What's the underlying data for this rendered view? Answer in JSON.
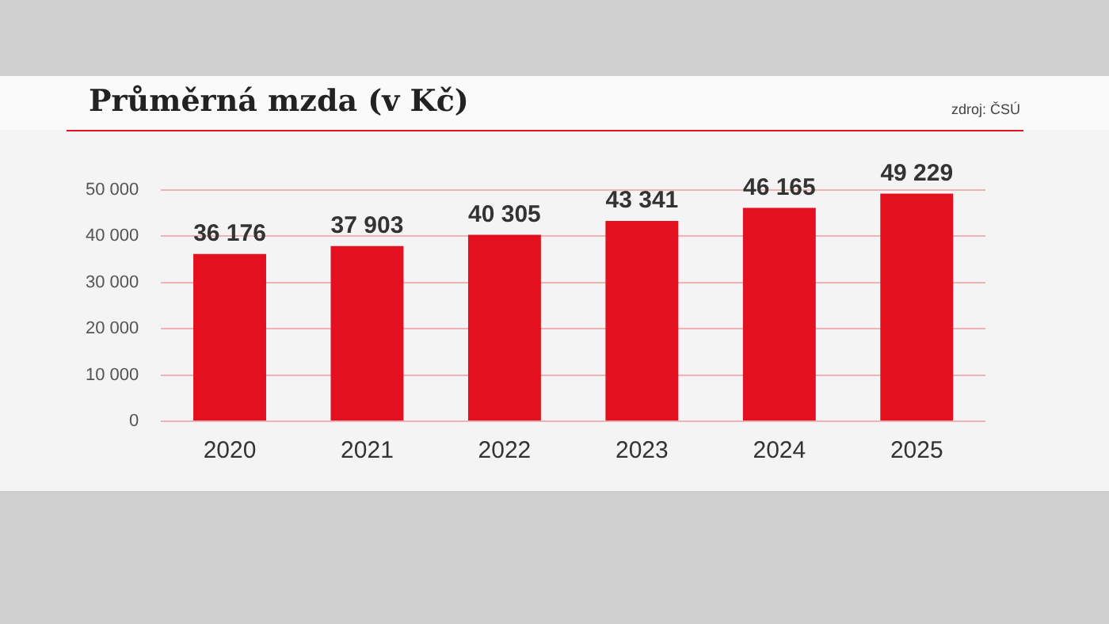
{
  "chart_data": {
    "type": "bar",
    "title": "Průměrná mzda (v Kč)",
    "annotations": [
      "zdroj: ČSÚ"
    ],
    "categories": [
      "2020",
      "2021",
      "2022",
      "2023",
      "2024",
      "2025"
    ],
    "values": [
      36176,
      37903,
      40305,
      43341,
      46165,
      49229
    ],
    "value_labels": [
      "36 176",
      "37 903",
      "40 305",
      "43 341",
      "46 165",
      "49 229"
    ],
    "color": "#e3101f",
    "ylim": [
      0,
      50000
    ],
    "yticks": [
      {
        "value": 0,
        "label": "0"
      },
      {
        "value": 10000,
        "label": "10 000"
      },
      {
        "value": 20000,
        "label": "20 000"
      },
      {
        "value": 30000,
        "label": "30 000"
      },
      {
        "value": 40000,
        "label": "40 000"
      },
      {
        "value": 50000,
        "label": "50 000"
      }
    ],
    "grid": "y"
  }
}
